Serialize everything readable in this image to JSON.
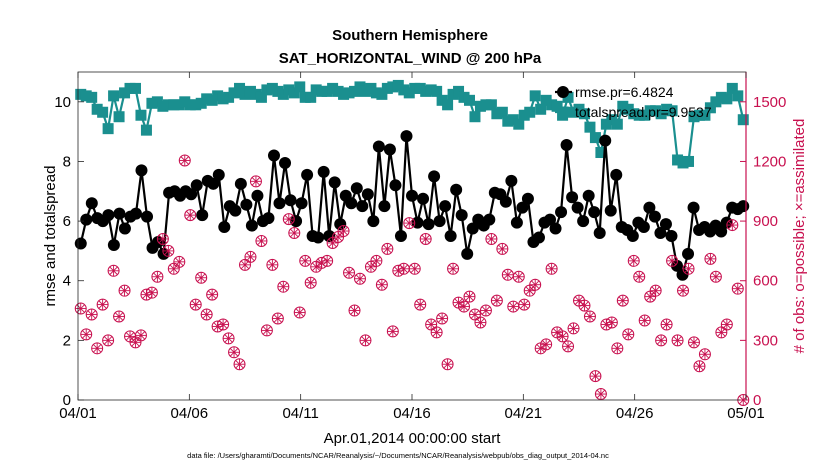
{
  "chart_data": {
    "type": "line",
    "title": "Southern Hemisphere",
    "subtitle": "SAT_HORIZONTAL_WIND @ 200 hPa",
    "xlabel": "Apr.01,2014 00:00:00 start",
    "ylabel": "rmse and totalspread",
    "ylabel_right": "# of obs: o=possible; ×=assimilated",
    "footer": "data file: /Users/gharamti/Documents/NCAR/Reanalysis/~/Documents/NCAR/Reanalysis/webpub/obs_diag_output_2014-04.nc",
    "x_tick_labels": [
      "04/01",
      "04/06",
      "04/11",
      "04/16",
      "04/21",
      "04/26",
      "05/01"
    ],
    "x_tick_days": [
      0,
      5,
      10,
      15,
      20,
      25,
      30
    ],
    "xlim": [
      0,
      30
    ],
    "ylim": [
      0,
      11
    ],
    "y_ticks": [
      0,
      2,
      4,
      6,
      8,
      10
    ],
    "ylim_right": [
      0,
      1650
    ],
    "y_ticks_right": [
      0,
      300,
      600,
      900,
      1200,
      1500
    ],
    "legend_position": "top-right",
    "colors": {
      "rmse": "#000000",
      "spread": "#1a8f8f",
      "obs": "#c8104f",
      "axis_right": "#c8104f"
    },
    "series": [
      {
        "name": "rmse.pr=6.4824",
        "axis": "left",
        "values": [
          5.25,
          6.05,
          6.6,
          6.1,
          6.0,
          6.2,
          5.2,
          6.25,
          5.75,
          6.15,
          6.25,
          7.7,
          6.15,
          5.1,
          5.3,
          4.9,
          6.95,
          7.0,
          6.85,
          7.0,
          6.9,
          7.2,
          6.2,
          7.35,
          7.25,
          7.55,
          5.8,
          6.5,
          6.35,
          7.25,
          6.55,
          5.85,
          6.85,
          6.0,
          6.1,
          8.2,
          6.6,
          7.95,
          6.7,
          6.0,
          6.6,
          7.55,
          5.5,
          5.45,
          7.65,
          5.5,
          7.3,
          5.9,
          6.85,
          6.6,
          7.1,
          6.5,
          6.9,
          6.0,
          8.5,
          6.5,
          8.4,
          7.2,
          5.5,
          8.85,
          6.85,
          5.95,
          6.75,
          5.9,
          7.5,
          6.0,
          6.5,
          5.5,
          7.05,
          6.2,
          4.9,
          5.75,
          6.05,
          5.85,
          6.05,
          6.95,
          6.9,
          6.65,
          7.35,
          5.95,
          6.45,
          6.75,
          5.3,
          5.45,
          5.95,
          6.05,
          5.75,
          6.3,
          8.55,
          6.8,
          6.45,
          6.0,
          6.85,
          6.3,
          5.6,
          8.7,
          6.35,
          7.55,
          5.8,
          5.7,
          5.5,
          5.95,
          5.8,
          6.45,
          6.15,
          5.6,
          5.9,
          5.5,
          4.5,
          4.2,
          4.9,
          6.45,
          5.7,
          5.8,
          5.65,
          5.85,
          5.65,
          5.95,
          6.45,
          6.4,
          6.5
        ]
      },
      {
        "name": "totalspread.pr=9.9537",
        "axis": "left",
        "values": [
          10.25,
          10.2,
          10.15,
          9.75,
          9.65,
          9.1,
          10.2,
          9.5,
          10.3,
          10.45,
          10.45,
          9.55,
          9.05,
          9.95,
          10.0,
          9.85,
          9.9,
          9.9,
          9.9,
          10.0,
          9.9,
          9.9,
          9.95,
          10.1,
          10.05,
          10.2,
          10.1,
          10.15,
          10.3,
          10.45,
          10.25,
          10.35,
          10.25,
          10.15,
          10.4,
          10.45,
          10.35,
          10.25,
          10.4,
          10.3,
          10.5,
          10.15,
          10.15,
          10.4,
          10.35,
          10.35,
          10.45,
          10.35,
          10.25,
          10.3,
          10.35,
          10.5,
          10.35,
          10.45,
          10.3,
          10.25,
          10.45,
          10.5,
          10.55,
          10.4,
          10.3,
          10.45,
          10.45,
          10.35,
          10.4,
          10.35,
          10.05,
          9.9,
          10.25,
          10.35,
          10.15,
          10.05,
          9.5,
          9.85,
          9.9,
          9.9,
          9.6,
          9.65,
          9.35,
          9.4,
          9.25,
          9.55,
          9.65,
          10.2,
          9.75,
          10.05,
          9.9,
          9.85,
          9.55,
          10.15,
          9.65,
          9.75,
          9.6,
          9.15,
          8.8,
          8.3,
          9.25,
          9.4,
          9.25,
          9.85,
          9.75,
          9.6,
          9.55,
          9.55,
          9.7,
          9.7,
          9.6,
          9.75,
          9.7,
          8.05,
          7.95,
          8.0,
          9.5,
          9.55,
          9.55,
          9.8,
          10.0,
          10.15,
          10.1,
          10.45,
          10.2,
          9.4
        ]
      },
      {
        "name": "obs possible",
        "axis": "right",
        "marker": "circle-cross",
        "values": [
          460,
          330,
          430,
          260,
          480,
          300,
          650,
          420,
          550,
          320,
          290,
          325,
          530,
          540,
          620,
          810,
          750,
          660,
          695,
          1205,
          930,
          480,
          615,
          430,
          530,
          370,
          380,
          310,
          240,
          180,
          680,
          720,
          1100,
          800,
          350,
          680,
          410,
          570,
          910,
          840,
          440,
          700,
          590,
          670,
          690,
          700,
          790,
          820,
          850,
          640,
          450,
          610,
          300,
          670,
          700,
          580,
          760,
          345,
          650,
          660,
          890,
          660,
          480,
          810,
          380,
          340,
          410,
          180,
          660,
          490,
          470,
          520,
          430,
          390,
          450,
          810,
          500,
          760,
          630,
          470,
          620,
          480,
          550,
          580,
          260,
          280,
          660,
          340,
          320,
          270,
          360,
          500,
          475,
          420,
          120,
          30,
          380,
          390,
          260,
          500,
          330,
          700,
          620,
          400,
          520,
          550,
          300,
          380,
          700,
          300,
          550,
          660,
          290,
          170,
          230,
          710,
          620,
          340,
          380,
          880,
          560,
          0
        ]
      }
    ]
  }
}
